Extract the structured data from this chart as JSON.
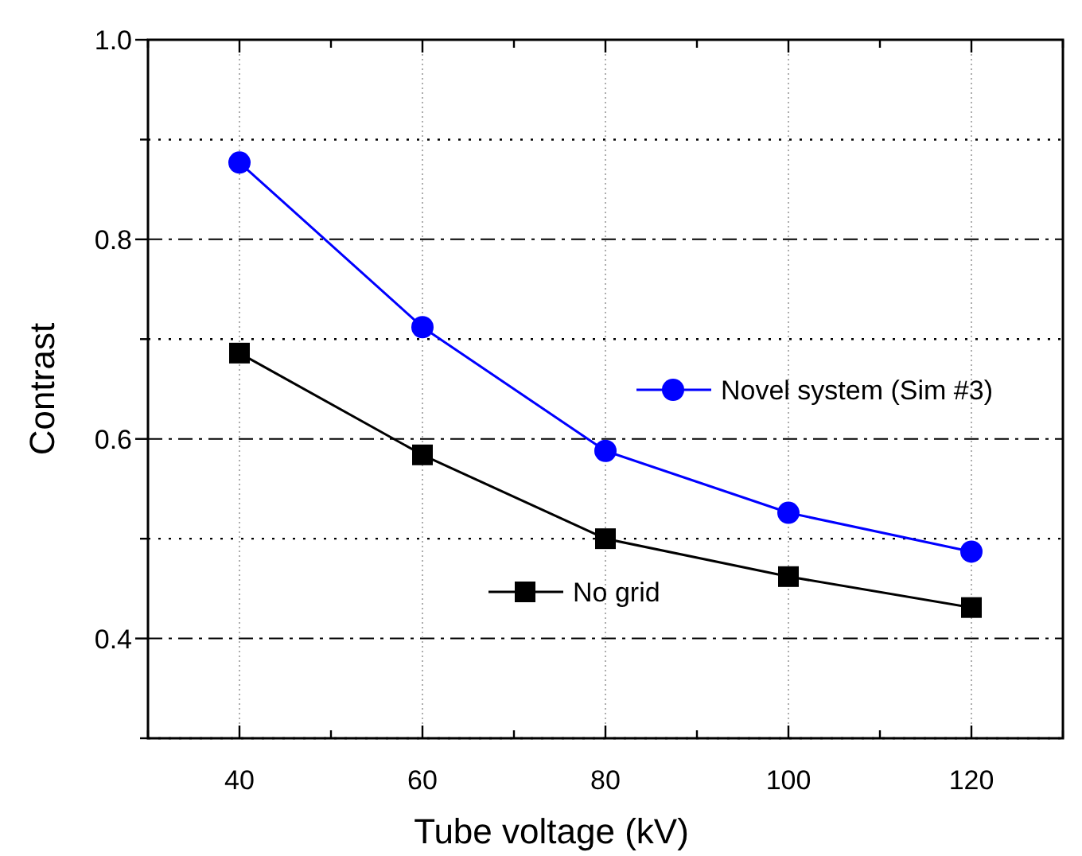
{
  "chart_data": {
    "type": "line",
    "xlabel": "Tube voltage (kV)",
    "ylabel": "Contrast",
    "x": [
      40,
      60,
      80,
      100,
      120
    ],
    "series": [
      {
        "name": "Novel system (Sim #3)",
        "color": "#0000ff",
        "marker": "circle",
        "values": [
          0.877,
          0.712,
          0.588,
          0.526,
          0.487
        ]
      },
      {
        "name": "No grid",
        "color": "#000000",
        "marker": "square",
        "values": [
          0.686,
          0.584,
          0.5,
          0.462,
          0.431
        ]
      }
    ],
    "xlim": [
      30,
      130
    ],
    "xticks": [
      {
        "value": 30,
        "label": null
      },
      40,
      {
        "value": 50,
        "label": null
      },
      60,
      {
        "value": 70,
        "label": null
      },
      80,
      {
        "value": 90,
        "label": null
      },
      100,
      {
        "value": 110,
        "label": null
      },
      120,
      {
        "value": 130,
        "label": null
      }
    ],
    "ylim": [
      0.3,
      1.0
    ],
    "yticks": [
      {
        "value": 0.3,
        "label": null
      },
      0.4,
      {
        "value": 0.5,
        "label": null
      },
      0.6,
      {
        "value": 0.7,
        "label": null
      },
      0.8,
      {
        "value": 0.9,
        "label": null
      },
      {
        "value": 1.0,
        "label": "1.0"
      }
    ],
    "grid": true,
    "legend": "right",
    "line_style": "solid"
  }
}
